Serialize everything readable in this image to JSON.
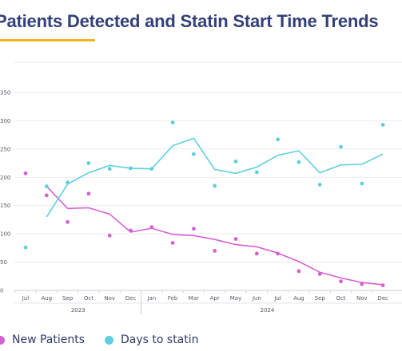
{
  "title": "Patients Detected and Statin Start Time Trends",
  "colors": {
    "title": "#33407a",
    "accent": "#f2b418",
    "new_patients": "#d660d2",
    "days_to_statin": "#5fcfdf"
  },
  "chart_data": {
    "type": "line",
    "title": "Patients Detected and Statin Start Time Trends",
    "xlabel": "",
    "ylabel": "",
    "ylim": [
      0,
      350
    ],
    "yticks": [
      0,
      50,
      100,
      150,
      200,
      250,
      300,
      350
    ],
    "grid": true,
    "legend_position": "bottom",
    "categories": [
      "Jul",
      "Aug",
      "Sep",
      "Oct",
      "Nov",
      "Dec",
      "Jan",
      "Feb",
      "Mar",
      "Apr",
      "May",
      "Jun",
      "Jul",
      "Aug",
      "Sep",
      "Oct",
      "Nov",
      "Dec"
    ],
    "year_groups": [
      {
        "label": "2023",
        "start": 0,
        "end": 5
      },
      {
        "label": "2024",
        "start": 6,
        "end": 17
      }
    ],
    "series": [
      {
        "name": "New Patients",
        "color": "#d660d2",
        "points": [
          207,
          168,
          121,
          171,
          97,
          106,
          112,
          84,
          109,
          70,
          91,
          65,
          65,
          34,
          29,
          16,
          11,
          9
        ],
        "line": [
          null,
          184,
          145,
          146,
          135,
          103,
          110,
          99,
          97,
          90,
          81,
          77,
          66,
          51,
          32,
          22,
          14,
          10
        ]
      },
      {
        "name": "Days to statin",
        "color": "#5fcfdf",
        "points": [
          76,
          184,
          191,
          225,
          215,
          216,
          215,
          297,
          241,
          185,
          228,
          209,
          267,
          227,
          187,
          254,
          189,
          293
        ],
        "line": [
          null,
          130,
          188,
          208,
          221,
          216,
          215,
          256,
          269,
          214,
          207,
          218,
          239,
          247,
          208,
          222,
          223,
          241
        ]
      }
    ]
  }
}
